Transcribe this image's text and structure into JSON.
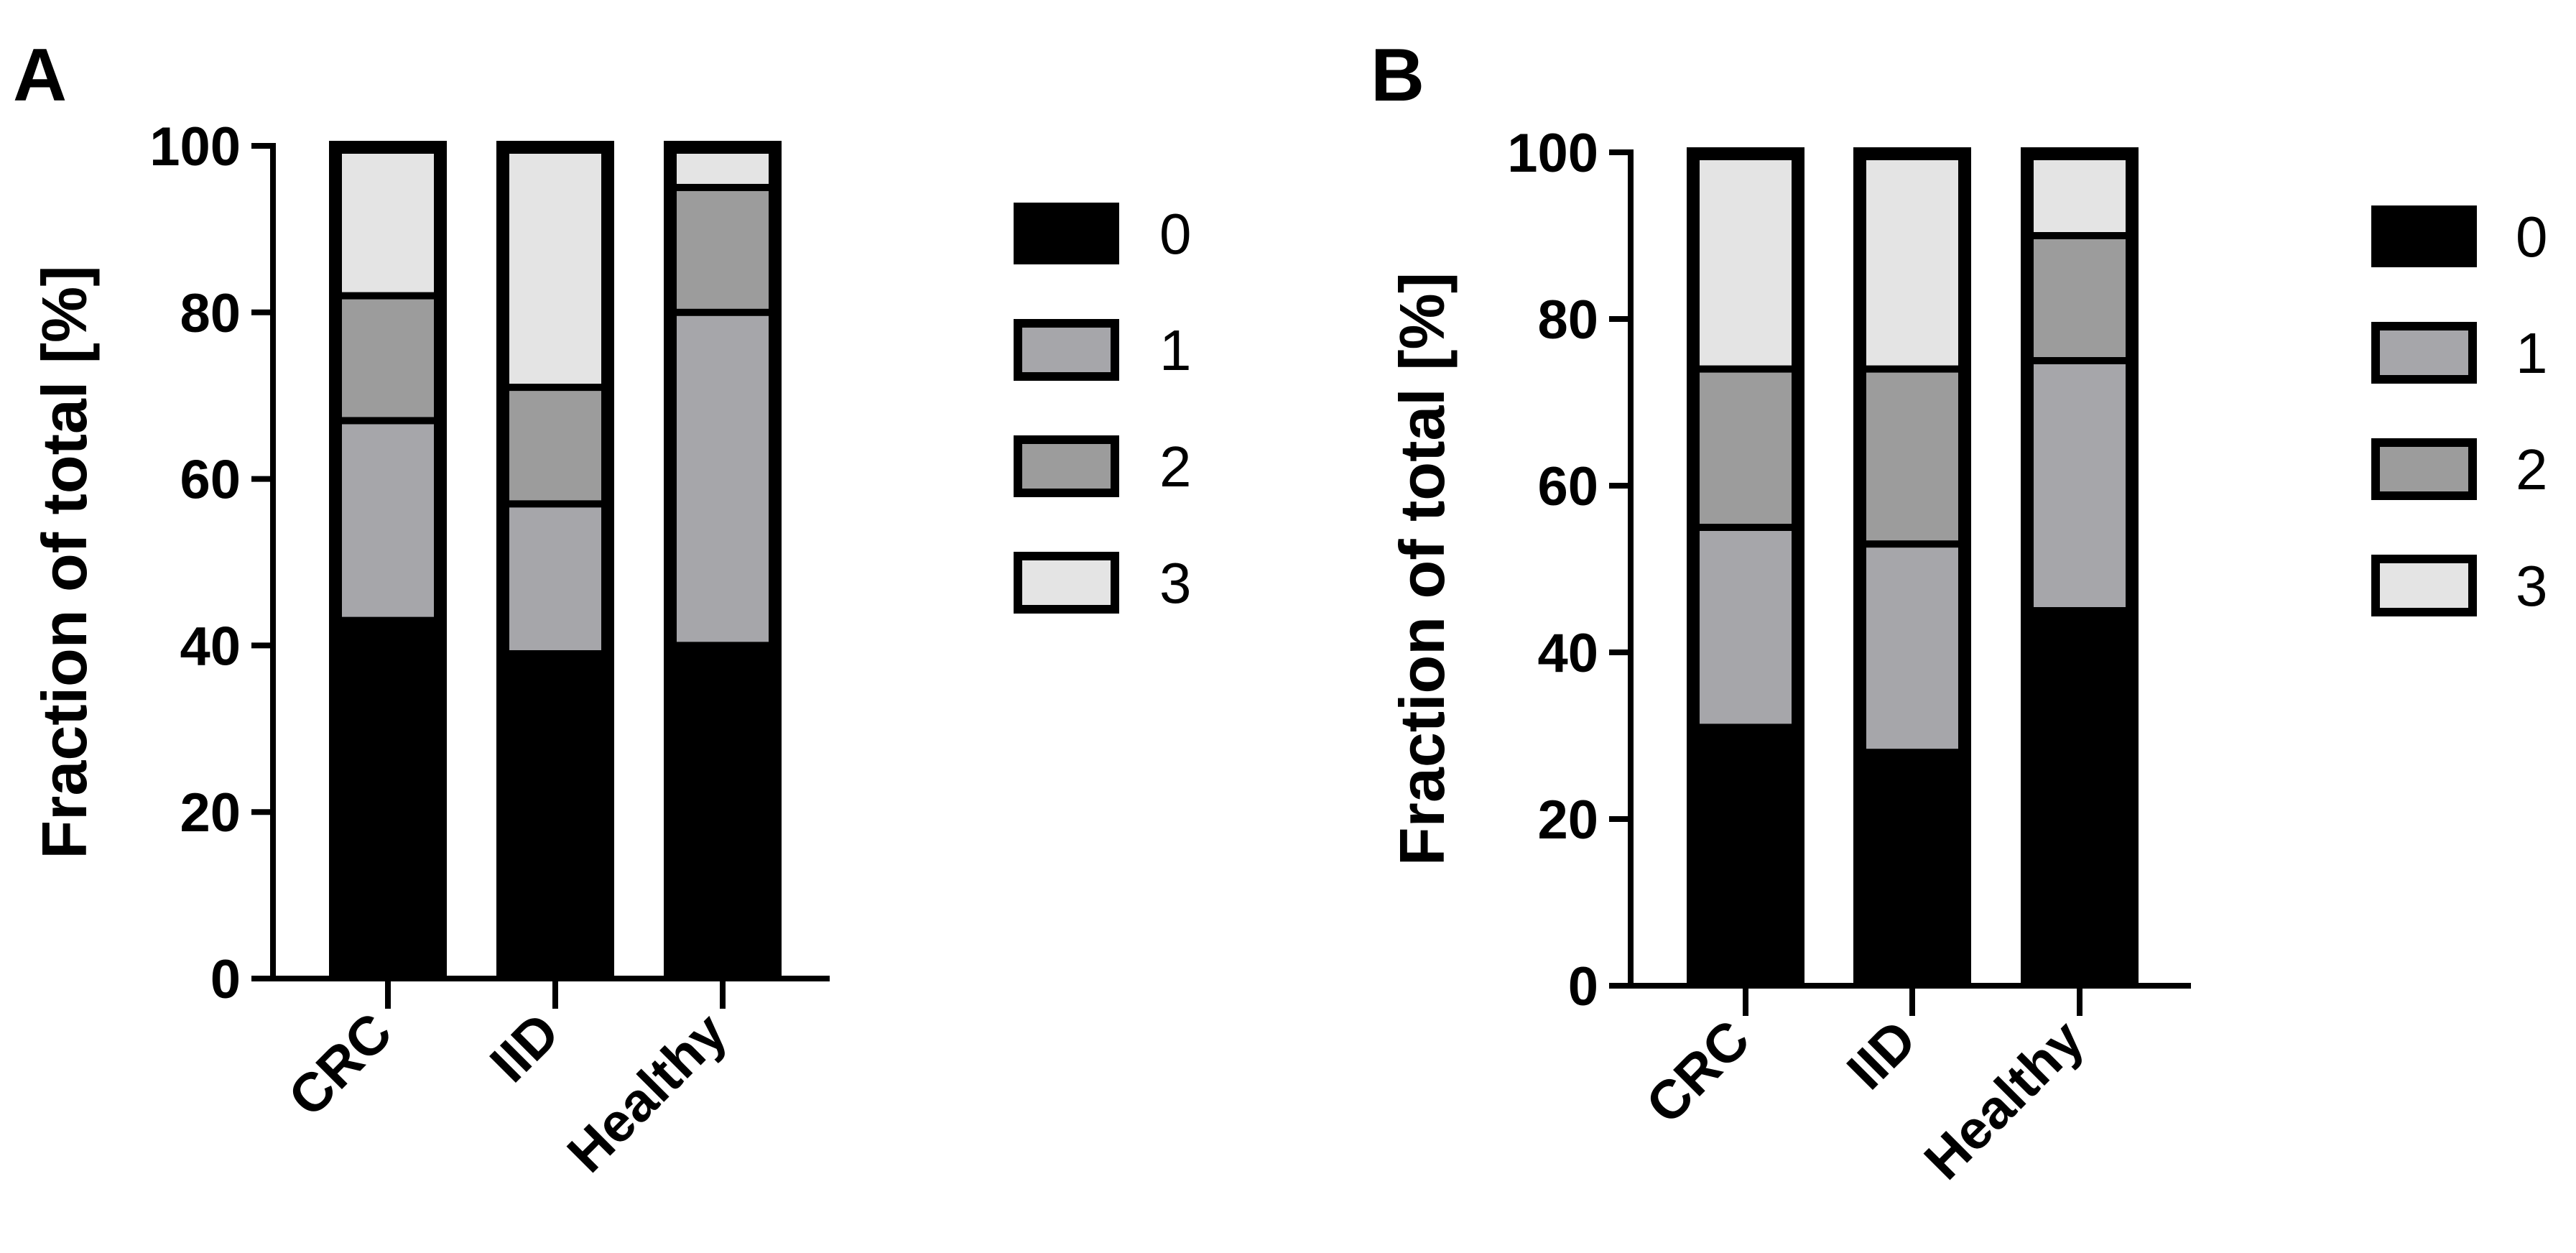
{
  "chart_data": [
    {
      "panel": "A",
      "type": "bar",
      "stacked": true,
      "categories": [
        "CRC",
        "IID",
        "Healthy"
      ],
      "ylabel": "Fraction of total [%]",
      "ylim": [
        0,
        100
      ],
      "yticks": [
        0,
        20,
        40,
        60,
        80,
        100
      ],
      "legend_position": "right",
      "series": [
        {
          "name": "0",
          "color": "#000000",
          "values": [
            43,
            39,
            40
          ]
        },
        {
          "name": "1",
          "color": "#a6a6aa",
          "values": [
            24,
            18,
            40
          ]
        },
        {
          "name": "2",
          "color": "#9c9c9c",
          "values": [
            15,
            14,
            15
          ]
        },
        {
          "name": "3",
          "color": "#e4e4e4",
          "values": [
            18,
            29,
            5
          ]
        }
      ]
    },
    {
      "panel": "B",
      "type": "bar",
      "stacked": true,
      "categories": [
        "CRC",
        "IID",
        "Healthy"
      ],
      "ylabel": "Fraction of total [%]",
      "ylim": [
        0,
        100
      ],
      "yticks": [
        0,
        20,
        40,
        60,
        80,
        100
      ],
      "legend_position": "right",
      "series": [
        {
          "name": "0",
          "color": "#000000",
          "values": [
            31,
            28,
            45
          ]
        },
        {
          "name": "1",
          "color": "#a6a6aa",
          "values": [
            24,
            25,
            30
          ]
        },
        {
          "name": "2",
          "color": "#9c9c9c",
          "values": [
            19,
            21,
            15
          ]
        },
        {
          "name": "3",
          "color": "#e4e4e4",
          "values": [
            26,
            26,
            10
          ]
        }
      ]
    }
  ]
}
